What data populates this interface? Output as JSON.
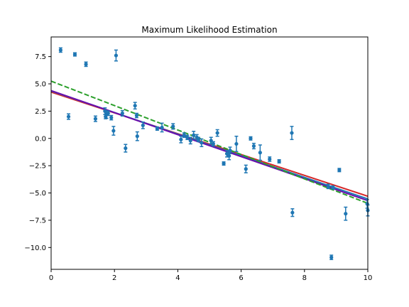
{
  "chart_data": {
    "type": "scatter",
    "title": "Maximum Likelihood Estimation",
    "xlabel": "",
    "ylabel": "",
    "xlim": [
      0,
      10
    ],
    "ylim": [
      -12.0,
      9.3
    ],
    "x_ticks": [
      0,
      2,
      4,
      6,
      8,
      10
    ],
    "y_ticks": [
      -10.0,
      -7.5,
      -5.0,
      -2.5,
      0.0,
      2.5,
      5.0,
      7.5
    ],
    "x_tick_labels": [
      "0",
      "2",
      "4",
      "6",
      "8",
      "10"
    ],
    "y_tick_labels": [
      "−10.0",
      "−7.5",
      "−5.0",
      "−2.5",
      "0.0",
      "2.5",
      "5.0",
      "7.5"
    ],
    "grid": false,
    "points": {
      "color": "#1f77b4",
      "data": [
        {
          "x": 0.3,
          "y": 8.1,
          "err": 0.2
        },
        {
          "x": 0.55,
          "y": 2.0,
          "err": 0.25
        },
        {
          "x": 0.75,
          "y": 7.7,
          "err": 0.15
        },
        {
          "x": 1.1,
          "y": 6.8,
          "err": 0.2
        },
        {
          "x": 1.4,
          "y": 1.8,
          "err": 0.25
        },
        {
          "x": 1.7,
          "y": 2.5,
          "err": 0.3
        },
        {
          "x": 1.72,
          "y": 2.0,
          "err": 0.2
        },
        {
          "x": 1.75,
          "y": 2.2,
          "err": 0.35
        },
        {
          "x": 1.8,
          "y": 2.3,
          "err": 0.2
        },
        {
          "x": 1.9,
          "y": 1.9,
          "err": 0.2
        },
        {
          "x": 1.97,
          "y": 0.7,
          "err": 0.4
        },
        {
          "x": 2.05,
          "y": 7.6,
          "err": 0.5
        },
        {
          "x": 2.25,
          "y": 2.3,
          "err": 0.25
        },
        {
          "x": 2.35,
          "y": -0.9,
          "err": 0.35
        },
        {
          "x": 2.65,
          "y": 3.0,
          "err": 0.3
        },
        {
          "x": 2.7,
          "y": 2.1,
          "err": 0.2
        },
        {
          "x": 2.72,
          "y": 0.2,
          "err": 0.4
        },
        {
          "x": 2.9,
          "y": 1.2,
          "err": 0.3
        },
        {
          "x": 3.35,
          "y": 0.9,
          "err": 0.15
        },
        {
          "x": 3.5,
          "y": 1.0,
          "err": 0.4
        },
        {
          "x": 3.85,
          "y": 1.1,
          "err": 0.25
        },
        {
          "x": 4.1,
          "y": -0.1,
          "err": 0.3
        },
        {
          "x": 4.2,
          "y": 0.3,
          "err": 0.2
        },
        {
          "x": 4.3,
          "y": 0.1,
          "err": 0.2
        },
        {
          "x": 4.4,
          "y": -0.2,
          "err": 0.3
        },
        {
          "x": 4.5,
          "y": 0.3,
          "err": 0.35
        },
        {
          "x": 4.6,
          "y": 0.1,
          "err": 0.25
        },
        {
          "x": 4.65,
          "y": -0.1,
          "err": 0.2
        },
        {
          "x": 4.75,
          "y": -0.4,
          "err": 0.35
        },
        {
          "x": 5.05,
          "y": -0.2,
          "err": 0.3
        },
        {
          "x": 5.12,
          "y": -0.5,
          "err": 0.2
        },
        {
          "x": 5.25,
          "y": 0.5,
          "err": 0.3
        },
        {
          "x": 5.45,
          "y": -2.3,
          "err": 0.15
        },
        {
          "x": 5.55,
          "y": -1.4,
          "err": 0.3
        },
        {
          "x": 5.62,
          "y": -1.6,
          "err": 0.35
        },
        {
          "x": 5.65,
          "y": -1.1,
          "err": 0.3
        },
        {
          "x": 5.85,
          "y": -0.5,
          "err": 0.7
        },
        {
          "x": 6.15,
          "y": -2.8,
          "err": 0.35
        },
        {
          "x": 6.3,
          "y": 0.0,
          "err": 0.15
        },
        {
          "x": 6.4,
          "y": -0.7,
          "err": 0.25
        },
        {
          "x": 6.6,
          "y": -1.3,
          "err": 0.7
        },
        {
          "x": 6.9,
          "y": -1.9,
          "err": 0.2
        },
        {
          "x": 7.2,
          "y": -2.1,
          "err": 0.15
        },
        {
          "x": 7.6,
          "y": 0.5,
          "err": 0.6
        },
        {
          "x": 7.62,
          "y": -6.8,
          "err": 0.35
        },
        {
          "x": 8.75,
          "y": -4.4,
          "err": 0.2
        },
        {
          "x": 8.85,
          "y": -10.9,
          "err": 0.2
        },
        {
          "x": 8.9,
          "y": -4.5,
          "err": 0.15
        },
        {
          "x": 9.1,
          "y": -2.9,
          "err": 0.15
        },
        {
          "x": 9.3,
          "y": -6.9,
          "err": 0.6
        },
        {
          "x": 9.98,
          "y": -6.0,
          "err": 0.4
        },
        {
          "x": 10.0,
          "y": -6.6,
          "err": 0.5
        }
      ]
    },
    "lines": [
      {
        "color": "#d62728",
        "style": "solid",
        "x": [
          0,
          10
        ],
        "y": [
          4.25,
          -5.3
        ]
      },
      {
        "color": "#1f77b4",
        "style": "solid",
        "x": [
          0,
          10
        ],
        "y": [
          4.35,
          -5.55
        ]
      },
      {
        "color": "#6a0dad",
        "style": "solid",
        "x": [
          0,
          10
        ],
        "y": [
          4.38,
          -5.7
        ]
      },
      {
        "color": "#2ca02c",
        "style": "dashed",
        "x": [
          0,
          10
        ],
        "y": [
          5.25,
          -5.95
        ]
      }
    ]
  }
}
